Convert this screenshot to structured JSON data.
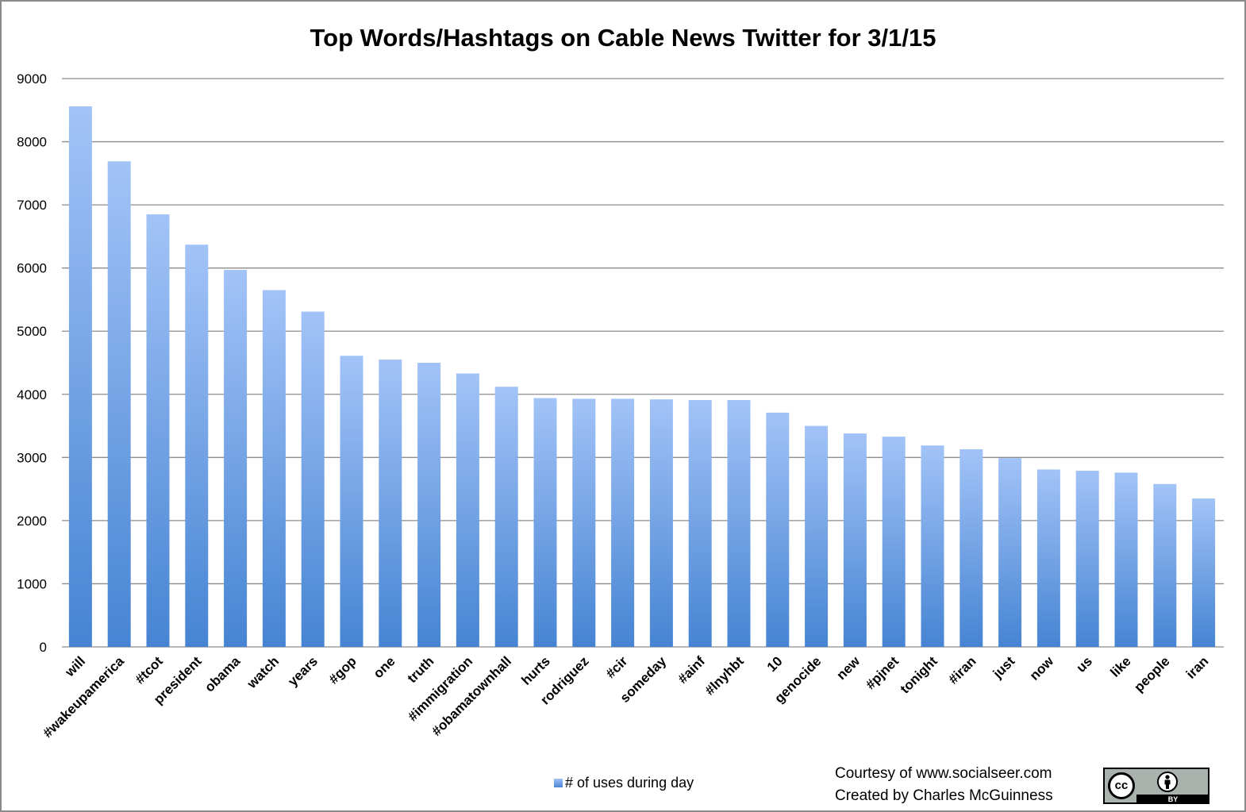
{
  "chart_data": {
    "type": "bar",
    "title": "Top Words/Hashtags on Cable News Twitter for 3/1/15",
    "xlabel": "",
    "ylabel": "",
    "ylim": [
      0,
      9000
    ],
    "yticks": [
      0,
      1000,
      2000,
      3000,
      4000,
      5000,
      6000,
      7000,
      8000,
      9000
    ],
    "grid": true,
    "legend_position": "bottom",
    "bar_color_top": "#a2c3f7",
    "bar_color_bottom": "#4684d3",
    "categories": [
      "will",
      "#wakeupamerica",
      "#tcot",
      "president",
      "obama",
      "watch",
      "years",
      "#gop",
      "one",
      "truth",
      "#immigration",
      "#obamatownhall",
      "hurts",
      "rodriguez",
      "#cir",
      "someday",
      "#ainf",
      "#lnyhbt",
      "10",
      "genocide",
      "new",
      "#pjnet",
      "tonight",
      "#iran",
      "just",
      "now",
      "us",
      "like",
      "people",
      "iran"
    ],
    "series": [
      {
        "name": "# of uses during day",
        "values": [
          8560,
          7690,
          6850,
          6370,
          5970,
          5650,
          5310,
          4610,
          4550,
          4500,
          4330,
          4120,
          3940,
          3930,
          3930,
          3920,
          3910,
          3910,
          3710,
          3500,
          3380,
          3330,
          3190,
          3130,
          2990,
          2810,
          2790,
          2760,
          2580,
          2350
        ]
      }
    ]
  },
  "credits": {
    "line1": "Courtesy of www.socialseer.com",
    "line2": "Created by Charles McGuinness"
  },
  "license_badge": {
    "cc_text": "cc",
    "by_text": "BY"
  }
}
